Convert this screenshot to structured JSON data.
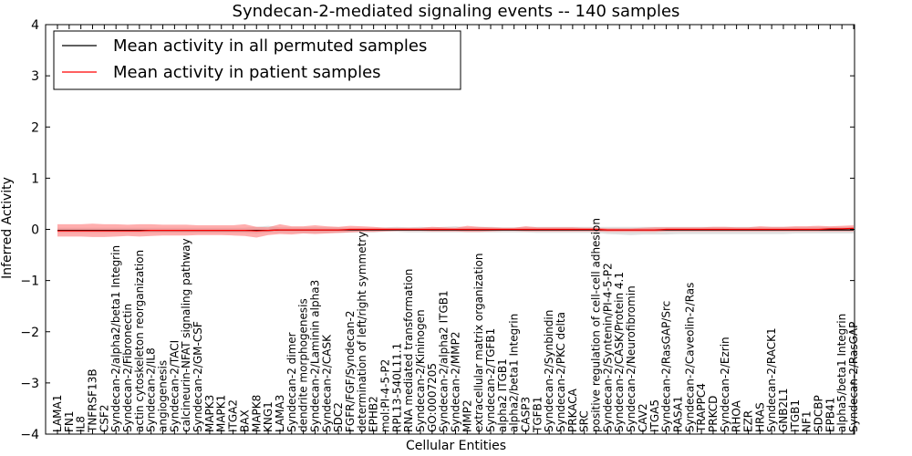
{
  "chart_data": {
    "type": "line",
    "title": "Syndecan-2-mediated signaling events -- 140 samples",
    "xlabel": "Cellular Entities",
    "ylabel": "Inferred Activity",
    "ylim": [
      -4,
      4
    ],
    "yticks": [
      "4",
      "3",
      "2",
      "1",
      "0",
      "−1",
      "−2",
      "−3",
      "−4"
    ],
    "legend_position": "top-left",
    "colors": {
      "permuted": "#000000",
      "patient": "#ff0000",
      "patient_band": "#ff6b6b",
      "permuted_band": "#bbbbbb"
    },
    "categories": [
      "LAMA1",
      "FN1",
      "IL8",
      "TNFRSF13B",
      "CSF2",
      "Syndecan-2/alpha2/beta1 Integrin",
      "Syndecan-2/Fibronectin",
      "actin cytoskeleton reorganization",
      "Syndecan-2/IL8",
      "angiogenesis",
      "Syndecan-2/TACI",
      "calcineurin-NFAT signaling pathway",
      "Syndecan-2/GM-CSF",
      "MAPK3",
      "MAPK1",
      "ITGA2",
      "BAX",
      "MAPK8",
      "KNG1",
      "LAMA3",
      "Syndecan-2 dimer",
      "dendrite morphogenesis",
      "Syndecan-2/Laminin alpha3",
      "Syndecan-2/CASK",
      "SDC2",
      "FGFR/FGF/Syndecan-2",
      "determination of left/right symmetry",
      "EPHB2",
      "mol:PI-4-5-P2",
      "RPL13-540L11.1",
      "RNA mediated transformation",
      "Syndecan-2/Kininogen",
      "GO:0007205",
      "Syndecan-2/alpha2 ITGB1",
      "Syndecan-2/MMP2",
      "MMP2",
      "extracellular matrix organization",
      "Syndecan-2/TGFB1",
      "alpha2 ITGB1",
      "alpha2/beta1 Integrin",
      "CASP3",
      "TGFB1",
      "Syndecan-2/Synbindin",
      "Syndecan-2/PKC delta",
      "PRKACA",
      "SRC",
      "positive regulation of cell-cell adhesion",
      "Syndecan-2/Syntenin/PI-4-5-P2",
      "Syndecan-2/CASK/Protein 4.1",
      "Syndecan-2/Neurofibromin",
      "CAV2",
      "ITGA5",
      "Syndecan-2/RasGAP/Src",
      "RASA1",
      "Syndecan-2/Caveolin-2/Ras",
      "TRAPPC4",
      "PRKCD",
      "Syndecan-2/Ezrin",
      "RHOA",
      "EZR",
      "HRAS",
      "Syndecan-2/RACK1",
      "GNB2L1",
      "ITGB1",
      "NF1",
      "SDCBP",
      "EPB41",
      "alpha5/beta1 Integrin",
      "Syndecan-2/RasGAP"
    ],
    "series": [
      {
        "name": "Mean activity in all permuted samples",
        "values": [
          -0.02,
          -0.02,
          -0.02,
          -0.02,
          -0.02,
          -0.02,
          -0.02,
          -0.02,
          -0.02,
          -0.02,
          -0.02,
          -0.02,
          -0.02,
          -0.02,
          -0.02,
          -0.02,
          -0.02,
          -0.02,
          -0.02,
          -0.01,
          -0.01,
          -0.01,
          -0.01,
          -0.01,
          -0.01,
          -0.01,
          -0.01,
          -0.01,
          -0.01,
          -0.01,
          -0.01,
          -0.01,
          -0.01,
          -0.01,
          -0.01,
          -0.01,
          -0.01,
          -0.01,
          -0.01,
          -0.01,
          -0.01,
          -0.01,
          -0.01,
          -0.01,
          -0.01,
          -0.01,
          -0.01,
          -0.01,
          -0.01,
          -0.01,
          -0.01,
          -0.01,
          -0.01,
          -0.01,
          -0.01,
          -0.01,
          -0.01,
          -0.01,
          -0.01,
          -0.01,
          -0.01,
          -0.01,
          -0.01,
          -0.01,
          -0.01,
          -0.01,
          -0.01,
          -0.01,
          -0.01
        ]
      },
      {
        "name": "Mean activity in patient samples",
        "values": [
          -0.03,
          -0.03,
          -0.03,
          -0.03,
          -0.03,
          -0.03,
          -0.03,
          -0.03,
          -0.02,
          -0.02,
          -0.02,
          -0.02,
          -0.02,
          -0.02,
          -0.02,
          -0.02,
          -0.02,
          -0.03,
          -0.02,
          -0.01,
          -0.01,
          -0.01,
          -0.01,
          -0.01,
          -0.01,
          0,
          0,
          0,
          0,
          0,
          0,
          0,
          0,
          0,
          0,
          0,
          0,
          0,
          0,
          0,
          0,
          0,
          0,
          0,
          0,
          0,
          0,
          -0.01,
          -0.01,
          -0.01,
          -0.01,
          -0.01,
          0,
          0,
          0,
          0,
          0,
          0,
          0,
          0,
          0,
          0,
          0,
          0,
          0,
          0,
          0.01,
          0.01,
          0.02
        ]
      }
    ],
    "bands": {
      "patient_upper": [
        0.1,
        0.1,
        0.1,
        0.11,
        0.1,
        0.1,
        0.09,
        0.1,
        0.1,
        0.09,
        0.09,
        0.09,
        0.08,
        0.08,
        0.08,
        0.08,
        0.1,
        0.05,
        0.04,
        0.1,
        0.06,
        0.06,
        0.08,
        0.06,
        0.05,
        0.07,
        0.06,
        0.05,
        0.03,
        0.03,
        0.03,
        0.03,
        0.05,
        0.04,
        0.03,
        0.07,
        0.05,
        0.04,
        0.03,
        0.03,
        0.06,
        0.04,
        0.04,
        0.04,
        0.04,
        0.03,
        0.03,
        0.02,
        0.02,
        0.02,
        0.03,
        0.04,
        0.04,
        0.04,
        0.04,
        0.04,
        0.05,
        0.05,
        0.04,
        0.04,
        0.06,
        0.05,
        0.05,
        0.06,
        0.06,
        0.07,
        0.06,
        0.07,
        0.08
      ],
      "patient_lower": [
        -0.14,
        -0.14,
        -0.14,
        -0.15,
        -0.15,
        -0.14,
        -0.13,
        -0.14,
        -0.13,
        -0.12,
        -0.12,
        -0.12,
        -0.11,
        -0.11,
        -0.11,
        -0.12,
        -0.13,
        -0.16,
        -0.11,
        -0.09,
        -0.1,
        -0.08,
        -0.09,
        -0.08,
        -0.07,
        -0.06,
        -0.05,
        -0.05,
        -0.04,
        -0.03,
        -0.03,
        -0.03,
        -0.04,
        -0.04,
        -0.04,
        -0.05,
        -0.05,
        -0.04,
        -0.03,
        -0.03,
        -0.04,
        -0.04,
        -0.04,
        -0.04,
        -0.04,
        -0.04,
        -0.04,
        -0.05,
        -0.05,
        -0.05,
        -0.05,
        -0.05,
        -0.04,
        -0.04,
        -0.04,
        -0.04,
        -0.04,
        -0.04,
        -0.04,
        -0.04,
        -0.04,
        -0.04,
        -0.04,
        -0.04,
        -0.04,
        -0.04,
        -0.04,
        -0.04,
        -0.04
      ],
      "permuted_upper": [
        0.03,
        0.03,
        0.03,
        0.03,
        0.03,
        0.03,
        0.03,
        0.03,
        0.03,
        0.03,
        0.03,
        0.03,
        0.03,
        0.03,
        0.03,
        0.03,
        0.03,
        0.05,
        0.07,
        0.04,
        0.04,
        0.04,
        0.04,
        0.04,
        0.04,
        0.03,
        0.03,
        0.03,
        0.04,
        0.05,
        0.04,
        0.05,
        0.04,
        0.05,
        0.06,
        0.04,
        0.05,
        0.05,
        0.04,
        0.04,
        0.05,
        0.05,
        0.05,
        0.05,
        0.05,
        0.05,
        0.05,
        0.05,
        0.05,
        0.05,
        0.05,
        0.05,
        0.05,
        0.05,
        0.05,
        0.05,
        0.05,
        0.05,
        0.05,
        0.05,
        0.05,
        0.05,
        0.05,
        0.05,
        0.05,
        0.05,
        0.05,
        0.05,
        0.05
      ],
      "permuted_lower": [
        -0.07,
        -0.07,
        -0.07,
        -0.07,
        -0.07,
        -0.07,
        -0.07,
        -0.07,
        -0.07,
        -0.07,
        -0.07,
        -0.07,
        -0.07,
        -0.07,
        -0.07,
        -0.07,
        -0.07,
        -0.08,
        -0.06,
        -0.06,
        -0.06,
        -0.07,
        -0.07,
        -0.07,
        -0.07,
        -0.06,
        -0.06,
        -0.06,
        -0.05,
        -0.05,
        -0.06,
        -0.06,
        -0.06,
        -0.06,
        -0.06,
        -0.06,
        -0.06,
        -0.06,
        -0.06,
        -0.06,
        -0.06,
        -0.07,
        -0.07,
        -0.07,
        -0.07,
        -0.07,
        -0.07,
        -0.09,
        -0.1,
        -0.11,
        -0.1,
        -0.1,
        -0.1,
        -0.09,
        -0.09,
        -0.09,
        -0.09,
        -0.09,
        -0.09,
        -0.09,
        -0.09,
        -0.09,
        -0.09,
        -0.08,
        -0.08,
        -0.08,
        -0.08,
        -0.08,
        -0.08
      ]
    }
  }
}
